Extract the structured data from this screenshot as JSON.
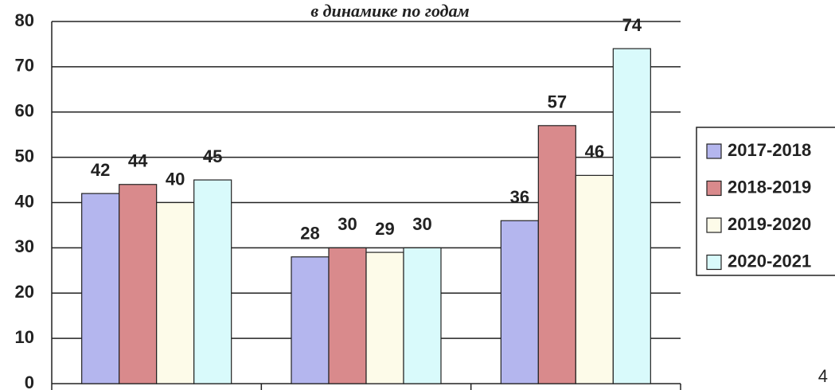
{
  "chart_data": {
    "type": "bar",
    "title": "в динамике по годам",
    "categories": [
      null,
      null,
      null
    ],
    "series": [
      {
        "name": "2017-2018",
        "color": "#b4b6ee",
        "values": [
          42,
          28,
          36
        ]
      },
      {
        "name": "2018-2019",
        "color": "#d98a8c",
        "values": [
          44,
          30,
          57
        ]
      },
      {
        "name": "2019-2020",
        "color": "#fdfbe9",
        "values": [
          40,
          29,
          46
        ]
      },
      {
        "name": "2020-2021",
        "color": "#d9fafb",
        "values": [
          45,
          30,
          74
        ]
      }
    ],
    "ylim": [
      0,
      80
    ],
    "yticks": [
      0,
      10,
      20,
      30,
      40,
      50,
      60,
      70,
      80
    ],
    "grid": true,
    "legend": "right",
    "annotation": "4"
  }
}
